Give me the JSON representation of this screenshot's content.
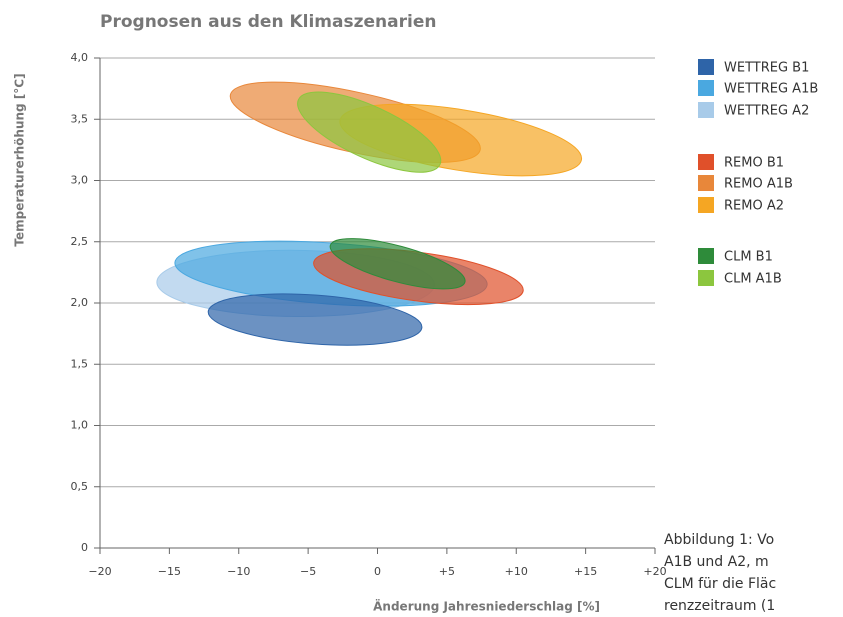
{
  "chart_data": {
    "type": "ellipse",
    "title": "Prognosen aus den Klimaszenarien",
    "x_label": "Änderung Jahresniederschlag [%]",
    "y_label": "Temperaturerhöhung [°C]",
    "xlim": [
      -20,
      20
    ],
    "xticks": [
      {
        "value": -20,
        "label": "−20"
      },
      {
        "value": -15,
        "label": "−15"
      },
      {
        "value": -10,
        "label": "−10"
      },
      {
        "value": -5,
        "label": "−5"
      },
      0,
      {
        "value": 5,
        "label": "+5"
      },
      {
        "value": 10,
        "label": "+10"
      },
      {
        "value": 15,
        "label": "+15"
      },
      {
        "value": 20,
        "label": "+20"
      }
    ],
    "ylim": [
      0,
      4
    ],
    "yticks": [
      0,
      {
        "value": 0.5,
        "label": "0,5"
      },
      {
        "value": 1,
        "label": "1,0"
      },
      {
        "value": 1.5,
        "label": "1,5"
      },
      {
        "value": 2,
        "label": "2,0"
      },
      {
        "value": 2.5,
        "label": "2,5"
      },
      {
        "value": 3,
        "label": "3,0"
      },
      {
        "value": 3.5,
        "label": "3,5"
      },
      {
        "value": 4,
        "label": "4,0"
      }
    ],
    "grid": true,
    "series": [
      {
        "name": "WETTREG B1",
        "color": "#2e64a8",
        "x": [
          -12.2,
          3.2
        ],
        "y": [
          1.93,
          1.8
        ],
        "half_height": 0.2
      },
      {
        "name": "WETTREG A1B",
        "color": "#4aa8e0",
        "x": [
          -14.6,
          7.9
        ],
        "y": [
          2.33,
          2.15
        ],
        "half_height": 0.25
      },
      {
        "name": "WETTREG A2",
        "color": "#a8cbe9",
        "x": [
          -15.9,
          4.1
        ],
        "y": [
          2.17,
          2.15
        ],
        "half_height": 0.27
      },
      {
        "name": "REMO B1",
        "color": "#e0502a",
        "x": [
          -4.6,
          10.5
        ],
        "y": [
          2.33,
          2.1
        ],
        "half_height": 0.2
      },
      {
        "name": "REMO A1B",
        "color": "#e8873a",
        "x": [
          -10.6,
          7.4
        ],
        "y": [
          3.7,
          3.25
        ],
        "half_height": 0.25
      },
      {
        "name": "REMO A2",
        "color": "#f5a623",
        "x": [
          -2.7,
          14.7
        ],
        "y": [
          3.49,
          3.17
        ],
        "half_height": 0.25
      },
      {
        "name": "CLM B1",
        "color": "#2e8b3a",
        "x": [
          -3.4,
          6.3
        ],
        "y": [
          2.47,
          2.17
        ],
        "half_height": 0.15
      },
      {
        "name": "CLM A1B",
        "color": "#8cc63e",
        "x": [
          -5.7,
          4.5
        ],
        "y": [
          3.66,
          3.13
        ],
        "half_height": 0.23
      }
    ],
    "caption": [
      "Abbildung 1: Vo",
      "A1B und A2, m",
      "CLM für die Fläc",
      "renzzeitraum (1"
    ]
  }
}
